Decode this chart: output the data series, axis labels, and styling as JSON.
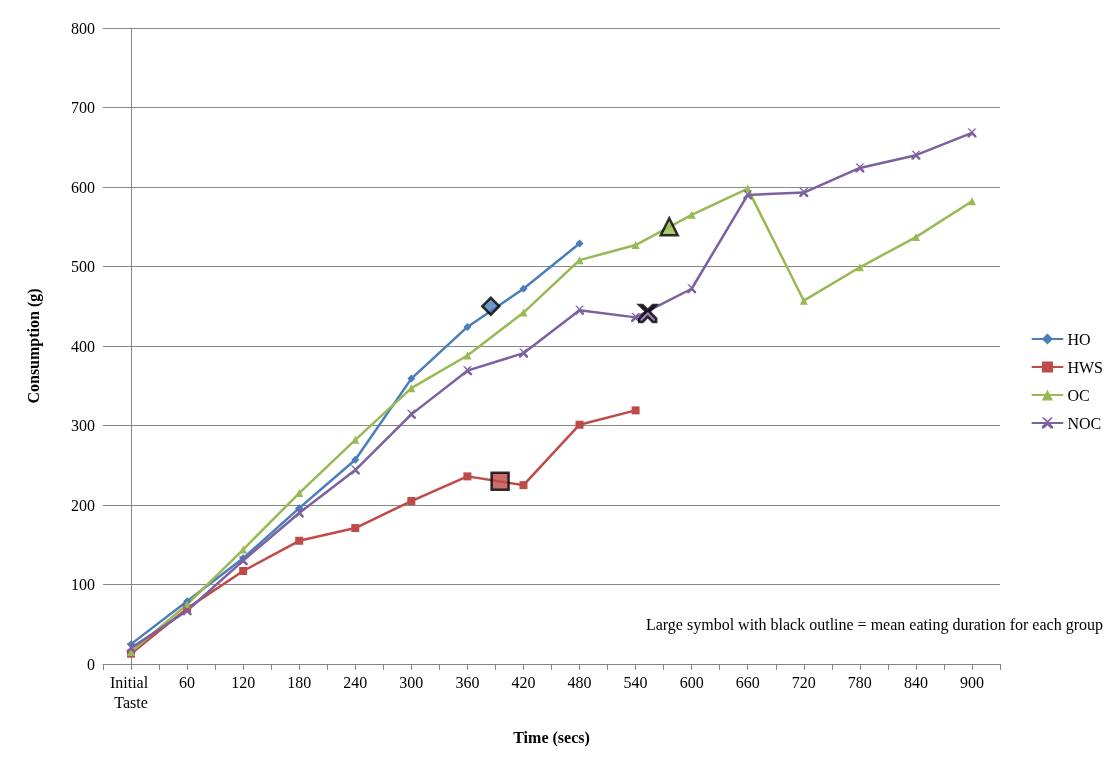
{
  "chart_data": {
    "type": "line",
    "xlabel": "Time (secs)",
    "ylabel": "Consumption (g)",
    "xlim": [
      -30,
      930
    ],
    "xticks": [
      {
        "value": 0,
        "label": "Initial Taste"
      },
      60,
      120,
      180,
      240,
      300,
      360,
      420,
      480,
      540,
      600,
      660,
      720,
      780,
      840,
      900,
      {
        "value": -30,
        "label": null
      },
      {
        "value": 30,
        "label": null
      },
      {
        "value": 90,
        "label": null
      },
      {
        "value": 150,
        "label": null
      },
      {
        "value": 210,
        "label": null
      },
      {
        "value": 270,
        "label": null
      },
      {
        "value": 330,
        "label": null
      },
      {
        "value": 390,
        "label": null
      },
      {
        "value": 450,
        "label": null
      },
      {
        "value": 510,
        "label": null
      },
      {
        "value": 570,
        "label": null
      },
      {
        "value": 630,
        "label": null
      },
      {
        "value": 690,
        "label": null
      },
      {
        "value": 750,
        "label": null
      },
      {
        "value": 810,
        "label": null
      },
      {
        "value": 870,
        "label": null
      },
      {
        "value": 930,
        "label": null
      }
    ],
    "ylim": [
      0,
      800
    ],
    "yticks": [
      0,
      100,
      200,
      300,
      400,
      500,
      600,
      700,
      800
    ],
    "grid": "y",
    "legend": "right",
    "line_style": "solid",
    "annotations": [
      "Large symbol with black outline = mean eating duration for each group"
    ],
    "series": [
      {
        "name": "HO",
        "color": "#4a7ebb",
        "marker": "diamond",
        "x": [
          0,
          60,
          120,
          180,
          240,
          300,
          360,
          420,
          480
        ],
        "values": [
          25,
          79,
          133,
          196,
          257,
          359,
          424,
          472,
          529
        ]
      },
      {
        "name": "HWS",
        "color": "#be4b48",
        "marker": "square",
        "x": [
          0,
          60,
          120,
          180,
          240,
          300,
          360,
          420,
          480,
          540
        ],
        "values": [
          13,
          70,
          117,
          155,
          171,
          205,
          236,
          225,
          301,
          319
        ]
      },
      {
        "name": "OC",
        "color": "#98b954",
        "marker": "triangle",
        "x": [
          0,
          60,
          120,
          180,
          240,
          300,
          360,
          420,
          480,
          540,
          600,
          660,
          720,
          780,
          840,
          900
        ],
        "values": [
          15,
          75,
          144,
          215,
          282,
          347,
          388,
          442,
          508,
          527,
          565,
          598,
          457,
          499,
          537,
          582
        ]
      },
      {
        "name": "NOC",
        "color": "#7d60a0",
        "marker": "cross",
        "x": [
          0,
          60,
          120,
          180,
          240,
          300,
          360,
          420,
          480,
          540,
          600,
          660,
          720,
          780,
          840,
          900
        ],
        "values": [
          20,
          67,
          130,
          190,
          244,
          314,
          369,
          391,
          445,
          436,
          472,
          590,
          593,
          624,
          640,
          668
        ]
      },
      {
        "type": "scatter",
        "color": "#4a7ebb",
        "marker": "diamond",
        "x": [
          385
        ],
        "values": [
          450
        ]
      },
      {
        "type": "scatter",
        "color": "#be4b48",
        "marker": "square",
        "x": [
          395
        ],
        "values": [
          230
        ]
      },
      {
        "type": "scatter",
        "color": "#98b954",
        "marker": "triangle",
        "x": [
          576
        ],
        "values": [
          550
        ]
      },
      {
        "type": "scatter",
        "color": "#7d60a0",
        "marker": "cross",
        "x": [
          553
        ],
        "values": [
          441
        ]
      }
    ]
  }
}
